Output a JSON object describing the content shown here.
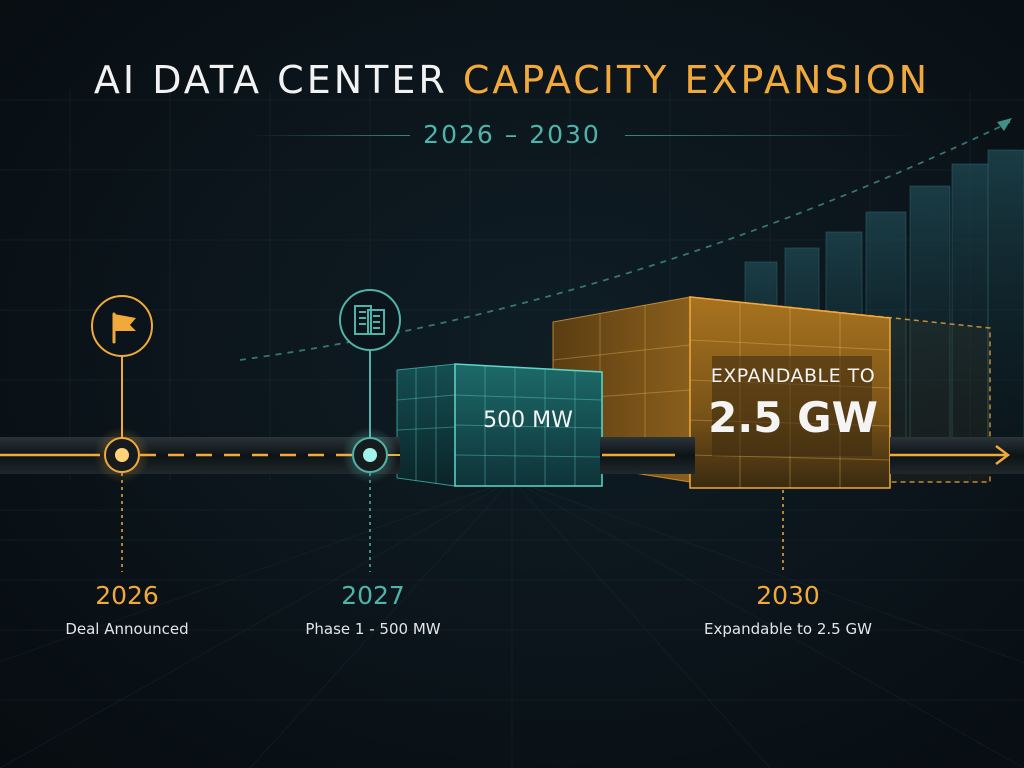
{
  "header": {
    "title_part1": "AI DATA CENTER",
    "title_part2": "CAPACITY EXPANSION",
    "date_range": "2026 – 2030"
  },
  "capacity_labels": {
    "phase1": "500 MW",
    "expandable_prefix": "EXPANDABLE TO",
    "expandable_value": "2.5 GW"
  },
  "milestones": [
    {
      "year": "2026",
      "label": "Deal Announced",
      "icon": "flag-icon",
      "color": "#f0a93a"
    },
    {
      "year": "2027",
      "label": "Phase 1 - 500 MW",
      "icon": "building-icon",
      "color": "#4fb3a9"
    },
    {
      "year": "2030",
      "label": "Expandable to 2.5 GW",
      "icon": "none",
      "color": "#f0a93a"
    }
  ],
  "colors": {
    "accent_gold": "#f0a93a",
    "accent_teal": "#4fb3a9",
    "background": "#0b141a"
  }
}
